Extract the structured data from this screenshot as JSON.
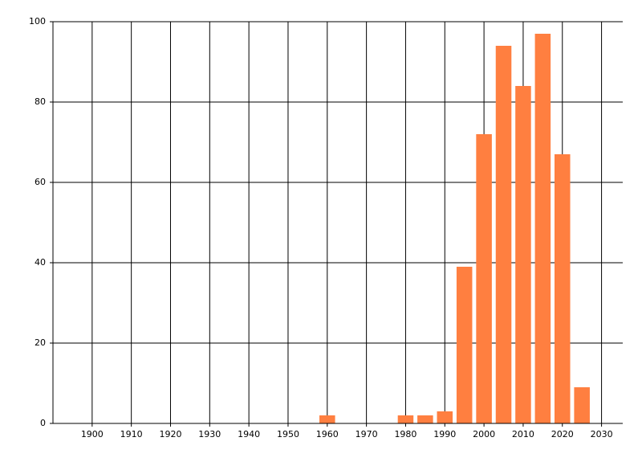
{
  "chart_data": {
    "type": "bar",
    "color": "#ff7f40",
    "grid": true,
    "x": [
      1960,
      1980,
      1985,
      1990,
      1995,
      2000,
      2005,
      2010,
      2015,
      2020,
      2025
    ],
    "values": [
      2,
      2,
      2,
      3,
      39,
      72,
      94,
      84,
      97,
      67,
      9
    ],
    "xlim": [
      1890,
      2035
    ],
    "xticks": [
      1900,
      1910,
      1920,
      1930,
      1940,
      1950,
      1960,
      1970,
      1980,
      1990,
      2000,
      2010,
      2020,
      2030
    ],
    "ylim": [
      0,
      100
    ],
    "yticks": [
      0,
      20,
      40,
      60,
      80,
      100
    ]
  }
}
